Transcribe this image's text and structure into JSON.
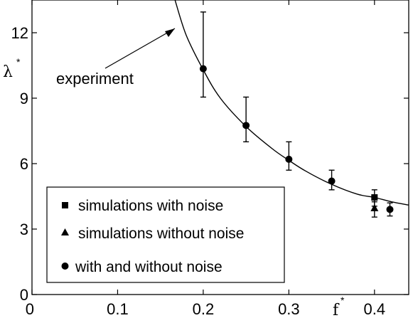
{
  "chart_data": {
    "type": "scatter",
    "xlabel": "f",
    "xlabel_sup": "*",
    "ylabel": "λ",
    "ylabel_sup": "*",
    "xlim": [
      0,
      0.44
    ],
    "ylim": [
      0,
      13.5
    ],
    "xticks": [
      "0",
      "0.1",
      "0.2",
      "0.3",
      "0.4"
    ],
    "xtick_values": [
      0,
      0.1,
      0.2,
      0.3,
      0.4
    ],
    "yticks": [
      "0",
      "3",
      "6",
      "9",
      "12"
    ],
    "ytick_values": [
      0,
      3,
      6,
      9,
      12
    ],
    "grid": false,
    "legend_position": "lower-left",
    "annotation": "experiment",
    "series": [
      {
        "name": "experiment",
        "kind": "line",
        "x": [
          0.167,
          0.18,
          0.2,
          0.22,
          0.25,
          0.28,
          0.3,
          0.32,
          0.35,
          0.38,
          0.4,
          0.42,
          0.44
        ],
        "y": [
          13.5,
          11.9,
          10.3,
          9.0,
          7.7,
          6.7,
          6.15,
          5.65,
          5.05,
          4.6,
          4.45,
          4.25,
          4.1
        ]
      },
      {
        "name": "simulations with noise",
        "kind": "marker",
        "marker": "square",
        "x": [
          0.4
        ],
        "y": [
          4.45
        ],
        "err_lo": [
          4.05
        ],
        "err_hi": [
          4.8
        ]
      },
      {
        "name": "simulations without noise",
        "kind": "marker",
        "marker": "triangle",
        "x": [
          0.4
        ],
        "y": [
          3.95
        ],
        "err_lo": [
          3.55
        ],
        "err_hi": [
          4.25
        ]
      },
      {
        "name": "with and without noise",
        "kind": "marker",
        "marker": "circle",
        "x": [
          0.2,
          0.25,
          0.3,
          0.35,
          0.418
        ],
        "y": [
          10.35,
          7.75,
          6.2,
          5.2,
          3.9
        ],
        "err_lo": [
          9.05,
          7.0,
          5.7,
          4.8,
          3.6
        ],
        "err_hi": [
          12.95,
          9.05,
          7.0,
          5.7,
          4.2
        ]
      }
    ]
  }
}
